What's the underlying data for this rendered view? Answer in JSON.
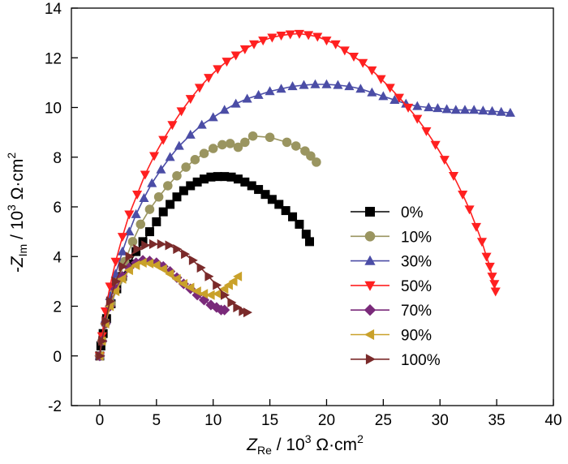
{
  "chart_data": {
    "type": "scatter",
    "title": "",
    "xlabel": {
      "main": "Z",
      "sub": "Re",
      "rest": " / 10",
      "sup": "3",
      "unit": " Ω·cm",
      "unit_sup": "2"
    },
    "ylabel": {
      "main": "-Z",
      "sub": "Im",
      "rest": " / 10",
      "sup": "3",
      "unit": " Ω·cm",
      "unit_sup": "2"
    },
    "xlim": [
      -2.5,
      40
    ],
    "ylim": [
      -2,
      14
    ],
    "x_ticks": [
      "0",
      "5",
      "10",
      "15",
      "20",
      "25",
      "30",
      "35",
      "40"
    ],
    "y_ticks": [
      "-2",
      "0",
      "2",
      "4",
      "6",
      "8",
      "10",
      "12",
      "14"
    ],
    "grid": false,
    "legend_position": "center-right",
    "series": [
      {
        "name": "0%",
        "color": "#000000",
        "marker": "square",
        "x": [
          0,
          0.1,
          0.3,
          0.6,
          1.0,
          1.5,
          2.0,
          2.6,
          3.2,
          3.8,
          4.4,
          5.0,
          5.6,
          6.2,
          6.8,
          7.4,
          8.0,
          8.6,
          9.2,
          9.8,
          10.4,
          11.0,
          11.6,
          12.2,
          12.8,
          13.4,
          14.0,
          14.6,
          15.2,
          15.8,
          16.4,
          17.0,
          17.6,
          18.2,
          18.5
        ],
        "y": [
          0,
          0.4,
          0.9,
          1.5,
          2.1,
          2.7,
          3.2,
          3.7,
          4.2,
          4.6,
          5.0,
          5.4,
          5.8,
          6.1,
          6.4,
          6.65,
          6.85,
          7.0,
          7.12,
          7.2,
          7.22,
          7.22,
          7.2,
          7.12,
          7.0,
          6.85,
          6.7,
          6.5,
          6.3,
          6.1,
          5.85,
          5.6,
          5.3,
          4.9,
          4.6
        ]
      },
      {
        "name": "10%",
        "color": "#9a9560",
        "marker": "circle",
        "x": [
          0,
          0.2,
          0.5,
          1.0,
          1.6,
          2.2,
          2.9,
          3.6,
          4.4,
          5.2,
          6.0,
          6.8,
          7.6,
          8.4,
          9.2,
          10.0,
          10.8,
          11.5,
          12.2,
          12.8,
          13.5,
          15.0,
          16.5,
          17.3,
          18.1,
          18.6,
          19.1
        ],
        "y": [
          0,
          0.6,
          1.3,
          2.1,
          3.0,
          3.8,
          4.6,
          5.3,
          5.9,
          6.4,
          6.85,
          7.25,
          7.6,
          7.9,
          8.15,
          8.35,
          8.5,
          8.55,
          8.4,
          8.6,
          8.85,
          8.8,
          8.6,
          8.45,
          8.25,
          8.05,
          7.8
        ]
      },
      {
        "name": "30%",
        "color": "#4b4da6",
        "marker": "triangle-up",
        "x": [
          0,
          0.2,
          0.5,
          0.9,
          1.4,
          2.0,
          2.6,
          3.2,
          3.9,
          4.6,
          5.4,
          6.2,
          7.0,
          8.0,
          9.0,
          10.0,
          11.0,
          12.0,
          13.0,
          14.0,
          15.0,
          16.0,
          17.0,
          18.0,
          19.0,
          20.0,
          21.0,
          22.0,
          23.0,
          24.0,
          25.0,
          26.0,
          27.0,
          28.0,
          29.0,
          29.8,
          30.6,
          31.4,
          32.2,
          33.0,
          33.8,
          34.6,
          35.4,
          36.2
        ],
        "y": [
          0,
          0.7,
          1.5,
          2.4,
          3.3,
          4.2,
          5.0,
          5.7,
          6.35,
          6.95,
          7.5,
          8.0,
          8.45,
          8.9,
          9.3,
          9.6,
          9.9,
          10.15,
          10.35,
          10.5,
          10.65,
          10.75,
          10.85,
          10.9,
          10.93,
          10.93,
          10.9,
          10.85,
          10.75,
          10.6,
          10.45,
          10.3,
          10.15,
          10.05,
          10.0,
          9.97,
          9.93,
          9.9,
          9.9,
          9.9,
          9.87,
          9.85,
          9.82,
          9.78
        ]
      },
      {
        "name": "50%",
        "color": "#ff2020",
        "marker": "triangle-down",
        "x": [
          0,
          0.2,
          0.5,
          0.9,
          1.4,
          2.0,
          2.6,
          3.3,
          4.0,
          4.8,
          5.6,
          6.4,
          7.2,
          8.0,
          8.8,
          9.6,
          10.4,
          11.2,
          12.0,
          12.8,
          13.6,
          14.4,
          15.2,
          16.0,
          16.8,
          17.6,
          18.4,
          19.2,
          20.0,
          20.8,
          21.6,
          22.4,
          23.2,
          24.0,
          24.8,
          25.6,
          26.4,
          27.2,
          28.0,
          28.8,
          29.6,
          30.4,
          31.2,
          32.0,
          32.6,
          33.2,
          33.7,
          34.1,
          34.4,
          34.6,
          34.8,
          34.9
        ],
        "y": [
          0,
          0.8,
          1.8,
          2.8,
          3.8,
          4.8,
          5.7,
          6.5,
          7.3,
          8.05,
          8.7,
          9.3,
          9.85,
          10.35,
          10.8,
          11.2,
          11.55,
          11.85,
          12.1,
          12.35,
          12.55,
          12.7,
          12.82,
          12.9,
          12.95,
          12.97,
          12.92,
          12.85,
          12.7,
          12.55,
          12.3,
          12.05,
          11.8,
          11.5,
          11.15,
          10.8,
          10.4,
          10.0,
          9.55,
          9.05,
          8.5,
          7.9,
          7.25,
          6.5,
          5.9,
          5.2,
          4.6,
          4.0,
          3.6,
          3.2,
          2.9,
          2.6
        ]
      },
      {
        "name": "70%",
        "color": "#7a2a7a",
        "marker": "diamond",
        "x": [
          0,
          0.2,
          0.5,
          0.9,
          1.4,
          2.0,
          2.6,
          3.2,
          3.8,
          4.4,
          5.0,
          5.6,
          6.2,
          6.8,
          7.4,
          8.0,
          8.6,
          9.2,
          9.8,
          10.3,
          10.7,
          11.0
        ],
        "y": [
          0,
          0.6,
          1.3,
          2.0,
          2.7,
          3.2,
          3.55,
          3.75,
          3.85,
          3.82,
          3.75,
          3.6,
          3.4,
          3.15,
          2.9,
          2.7,
          2.45,
          2.25,
          2.05,
          1.95,
          1.85,
          1.85
        ]
      },
      {
        "name": "90%",
        "color": "#c9a12a",
        "marker": "triangle-left",
        "x": [
          0,
          0.2,
          0.5,
          0.9,
          1.4,
          2.0,
          2.6,
          3.2,
          3.8,
          4.4,
          5.0,
          5.6,
          6.2,
          6.8,
          7.4,
          8.0,
          8.6,
          9.2,
          9.8,
          10.4,
          11.0,
          11.4,
          11.8,
          12.2
        ],
        "y": [
          0,
          0.6,
          1.3,
          2.0,
          2.6,
          3.1,
          3.45,
          3.65,
          3.75,
          3.72,
          3.65,
          3.5,
          3.3,
          3.1,
          2.9,
          2.75,
          2.6,
          2.5,
          2.45,
          2.5,
          2.7,
          2.85,
          3.0,
          3.2
        ]
      },
      {
        "name": "100%",
        "color": "#7a2a2a",
        "marker": "triangle-right",
        "x": [
          0,
          0.2,
          0.5,
          0.9,
          1.4,
          2.0,
          2.6,
          3.3,
          4.0,
          4.7,
          5.4,
          6.1,
          6.8,
          7.5,
          8.2,
          8.9,
          9.6,
          10.3,
          11.0,
          11.6,
          12.1,
          12.6,
          13.0
        ],
        "y": [
          0,
          0.6,
          1.4,
          2.2,
          3.0,
          3.6,
          4.0,
          4.3,
          4.45,
          4.5,
          4.5,
          4.45,
          4.3,
          4.1,
          3.85,
          3.55,
          3.2,
          2.85,
          2.45,
          2.15,
          1.95,
          1.8,
          1.75
        ]
      }
    ]
  }
}
